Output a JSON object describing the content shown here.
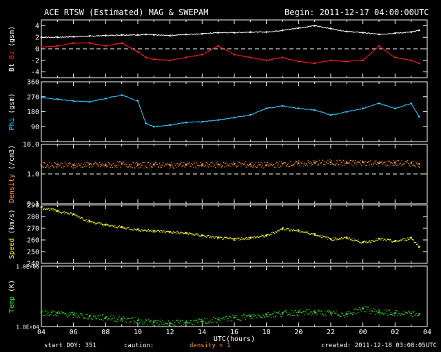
{
  "title": "ACE RTSW (Estimated) MAG & SWEPAM",
  "begin_label": "Begin: 2011-12-17 04:00:00UTC",
  "footer": {
    "start_doy": "start DOY: 351",
    "caution": "caution:",
    "density_note": "density < 1",
    "created": "created: 2011-12-18 03:08:05UTC"
  },
  "colors": {
    "background": "#000000",
    "axes": "#ffffff",
    "bt": "#ffffff",
    "bz": "#ff2020",
    "phi": "#33ccff",
    "density": "#ff9933",
    "speed": "#ffff33",
    "temp": "#33dd33",
    "caution": "#ff9933"
  },
  "chart_data": [
    {
      "type": "line",
      "panel": "magnetic-field",
      "ylabel_parts": [
        "Bt",
        "Bz",
        "(gsm)"
      ],
      "ylim": [
        -5,
        5
      ],
      "yticks": [
        -4,
        -2,
        0,
        2,
        4
      ],
      "reference_line": 0,
      "series": [
        {
          "name": "Bt",
          "color": "#ffffff",
          "x": [
            4,
            5,
            6,
            7,
            8,
            9,
            10,
            10.5,
            11,
            12,
            13,
            14,
            15,
            16,
            17,
            18,
            19,
            20,
            21,
            22,
            23,
            24,
            25,
            26,
            27,
            27.5
          ],
          "values": [
            2.0,
            2.0,
            2.1,
            2.2,
            2.3,
            2.4,
            2.4,
            2.5,
            2.4,
            2.3,
            2.5,
            2.6,
            2.8,
            2.8,
            2.9,
            2.9,
            3.2,
            3.6,
            4.0,
            3.5,
            3.0,
            2.8,
            2.5,
            2.7,
            2.9,
            3.2
          ]
        },
        {
          "name": "Bz",
          "color": "#ff2020",
          "x": [
            4,
            5,
            6,
            7,
            8,
            9,
            10,
            10.5,
            11,
            12,
            13,
            14,
            15,
            16,
            17,
            18,
            19,
            20,
            21,
            22,
            23,
            24,
            25,
            26,
            27,
            27.5
          ],
          "values": [
            0.3,
            0.5,
            1.0,
            1.0,
            0.5,
            1.0,
            -0.5,
            -1.5,
            -1.8,
            -2.0,
            -1.5,
            -1.0,
            0.5,
            -1.0,
            -1.5,
            -2.0,
            -1.5,
            -2.2,
            -2.5,
            -2.0,
            -2.2,
            -2.0,
            0.5,
            -1.5,
            -2.0,
            -2.5
          ]
        }
      ]
    },
    {
      "type": "line",
      "panel": "phi",
      "ylabel": "Phi (gsm)",
      "ylim": [
        0,
        360
      ],
      "yticks": [
        90,
        180,
        270,
        360
      ],
      "series": [
        {
          "name": "Phi",
          "color": "#33ccff",
          "x": [
            4,
            5,
            6,
            7,
            8,
            9,
            10,
            10.5,
            11,
            12,
            13,
            14,
            15,
            16,
            17,
            18,
            19,
            20,
            21,
            22,
            23,
            24,
            25,
            26,
            27,
            27.5
          ],
          "values": [
            265,
            255,
            245,
            240,
            260,
            280,
            245,
            110,
            90,
            100,
            115,
            120,
            130,
            145,
            160,
            200,
            215,
            200,
            190,
            160,
            180,
            200,
            230,
            200,
            230,
            150
          ]
        }
      ]
    },
    {
      "type": "scatter",
      "panel": "density",
      "ylabel": "Density (/cm3)",
      "scale": "log",
      "ylim": [
        0.1,
        10
      ],
      "yticks": [
        "0.1",
        "1.0",
        "10.0"
      ],
      "reference_line": 1,
      "series": [
        {
          "name": "Density",
          "color": "#ff9933",
          "x": [
            4,
            5,
            6,
            7,
            8,
            9,
            10,
            11,
            12,
            13,
            14,
            15,
            16,
            17,
            18,
            19,
            20,
            21,
            22,
            23,
            24,
            25,
            26,
            27,
            27.5
          ],
          "values": [
            2.0,
            2.1,
            2.0,
            2.1,
            2.0,
            2.2,
            2.0,
            2.1,
            2.0,
            2.1,
            2.0,
            2.1,
            2.2,
            2.1,
            2.0,
            2.2,
            2.3,
            2.4,
            2.5,
            2.4,
            2.5,
            2.3,
            2.4,
            2.3,
            2.2
          ]
        }
      ]
    },
    {
      "type": "scatter",
      "panel": "speed",
      "ylabel": "Speed (km/s)",
      "ylim": [
        240,
        290
      ],
      "yticks": [
        240,
        250,
        260,
        270,
        280,
        290
      ],
      "series": [
        {
          "name": "Speed",
          "color": "#ffff33",
          "x": [
            4,
            5,
            6,
            7,
            8,
            9,
            10,
            11,
            12,
            13,
            14,
            15,
            16,
            17,
            18,
            19,
            20,
            21,
            22,
            23,
            24,
            25,
            26,
            27,
            27.5
          ],
          "values": [
            288,
            285,
            282,
            276,
            273,
            271,
            269,
            268,
            267,
            266,
            264,
            262,
            261,
            262,
            264,
            270,
            268,
            265,
            261,
            262,
            258,
            261,
            259,
            262,
            254
          ]
        }
      ]
    },
    {
      "type": "scatter",
      "panel": "temperature",
      "ylabel": "Temp (K)",
      "scale": "log",
      "ylim": [
        10000,
        1000000
      ],
      "yticks": [
        "1.0E+04",
        "1.0E+06"
      ],
      "series": [
        {
          "name": "Temp",
          "color": "#33dd33",
          "x": [
            4,
            5,
            6,
            7,
            8,
            9,
            10,
            11,
            12,
            13,
            14,
            15,
            16,
            17,
            18,
            19,
            20,
            21,
            22,
            23,
            24,
            25,
            26,
            27,
            27.5
          ],
          "values": [
            30000,
            28000,
            25000,
            22000,
            20000,
            18000,
            16000,
            14000,
            13000,
            14000,
            15000,
            17000,
            20000,
            22000,
            25000,
            28000,
            30000,
            30000,
            28000,
            26000,
            40000,
            30000,
            28000,
            27000,
            26000
          ]
        }
      ]
    }
  ],
  "x_axis": {
    "label": "UTC(hours)",
    "ticks": [
      "04",
      "06",
      "08",
      "10",
      "12",
      "14",
      "16",
      "18",
      "20",
      "22",
      "00",
      "02",
      "04"
    ],
    "range": [
      4,
      28
    ]
  }
}
